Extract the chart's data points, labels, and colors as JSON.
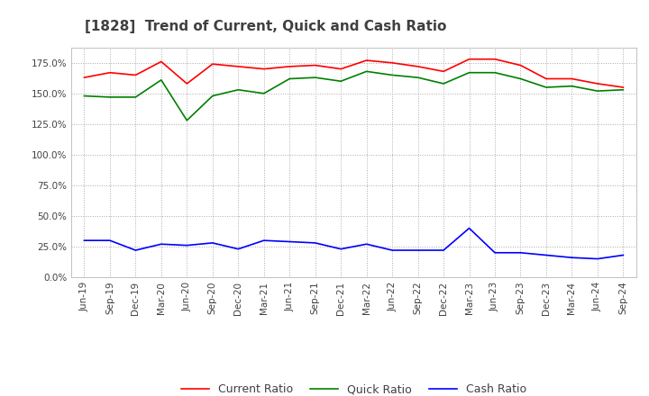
{
  "title": "[1828]  Trend of Current, Quick and Cash Ratio",
  "x_labels": [
    "Jun-19",
    "Sep-19",
    "Dec-19",
    "Mar-20",
    "Jun-20",
    "Sep-20",
    "Dec-20",
    "Mar-21",
    "Jun-21",
    "Sep-21",
    "Dec-21",
    "Mar-22",
    "Jun-22",
    "Sep-22",
    "Dec-22",
    "Mar-23",
    "Jun-23",
    "Sep-23",
    "Dec-23",
    "Mar-24",
    "Jun-24",
    "Sep-24"
  ],
  "current_ratio": [
    163,
    167,
    165,
    176,
    158,
    174,
    172,
    170,
    172,
    173,
    170,
    177,
    175,
    172,
    168,
    178,
    178,
    173,
    162,
    162,
    158,
    155
  ],
  "quick_ratio": [
    148,
    147,
    147,
    161,
    128,
    148,
    153,
    150,
    162,
    163,
    160,
    168,
    165,
    163,
    158,
    167,
    167,
    162,
    155,
    156,
    152,
    153
  ],
  "cash_ratio": [
    30,
    30,
    22,
    27,
    26,
    28,
    23,
    30,
    29,
    28,
    23,
    27,
    22,
    22,
    22,
    40,
    20,
    20,
    18,
    16,
    15,
    18
  ],
  "ylim": [
    0,
    187.5
  ],
  "yticks": [
    0,
    25,
    50,
    75,
    100,
    125,
    150,
    175
  ],
  "current_color": "#FF0000",
  "quick_color": "#008000",
  "cash_color": "#0000FF",
  "bg_color": "#FFFFFF",
  "grid_color": "#AAAAAA",
  "title_color": "#404040",
  "title_fontsize": 11,
  "legend_fontsize": 9,
  "tick_fontsize": 7.5
}
